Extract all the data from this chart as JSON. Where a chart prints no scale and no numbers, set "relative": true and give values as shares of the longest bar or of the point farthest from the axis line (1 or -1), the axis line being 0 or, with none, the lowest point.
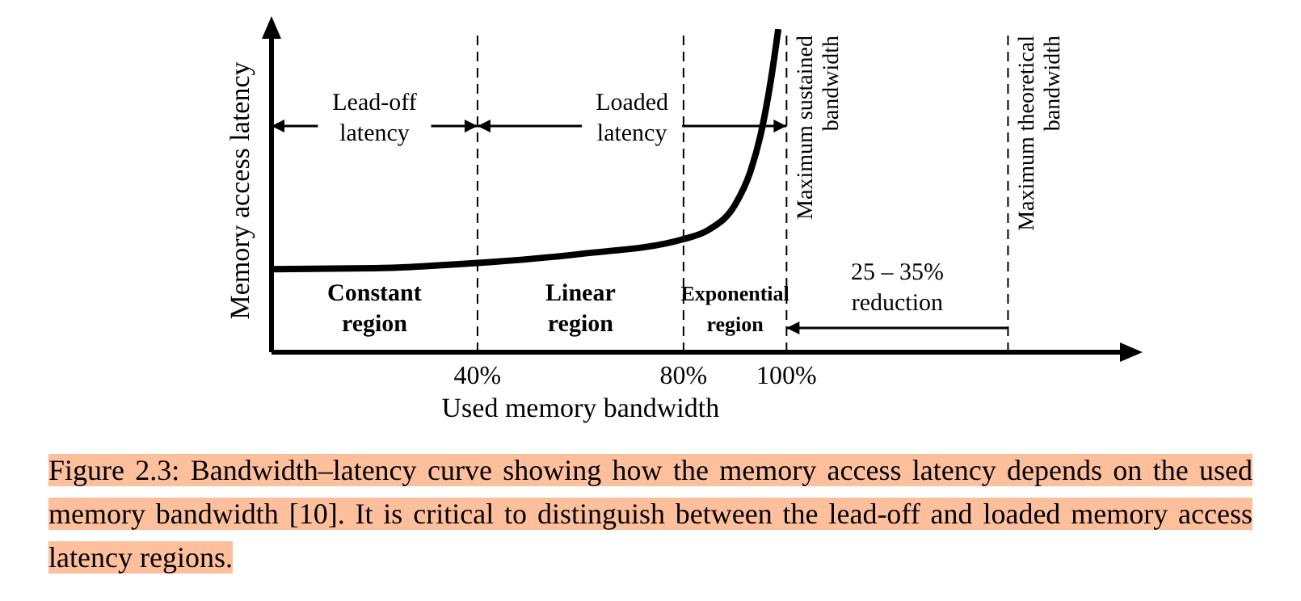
{
  "chart_data": {
    "type": "line",
    "relative": true,
    "xlabel": "Used memory bandwidth",
    "ylabel": "Memory access latency",
    "xlim": [
      0,
      166
    ],
    "xticks": [
      {
        "value": 40,
        "label": "40%"
      },
      {
        "value": 80,
        "label": "80%"
      },
      {
        "value": 100,
        "label": "100%"
      }
    ],
    "series": [
      {
        "color": "#000000",
        "x": [
          0,
          20,
          40,
          60,
          80,
          85,
          90,
          93,
          95,
          97,
          98.4
        ],
        "values": [
          0.257,
          0.26,
          0.276,
          0.304,
          0.35,
          0.38,
          0.456,
          0.56,
          0.675,
          0.846,
          1
        ]
      }
    ],
    "ref_lines": [
      {
        "axis": "x",
        "value": 40,
        "label": null,
        "color": "#000000",
        "line_style": "dashed"
      },
      {
        "axis": "x",
        "value": 80,
        "label": null,
        "color": "#000000",
        "line_style": "dashed"
      },
      {
        "axis": "x",
        "value": 100,
        "label": "Maximum sustained bandwidth",
        "color": "#000000",
        "line_style": "dashed"
      },
      {
        "axis": "x",
        "value": 143,
        "label": "Maximum theoretical bandwidth",
        "color": "#000000",
        "line_style": "dashed"
      }
    ],
    "annotations": [
      "Lead-off latency",
      "Loaded latency",
      "Constant region",
      "Linear region",
      "Exponential region",
      "25 – 35% reduction",
      "Figure 2.3: Bandwidth–latency curve showing how the memory access latency depends on the used memory bandwidth [10]. It is critical to distinguish between the lead-off and loaded memory access latency regions."
    ],
    "legend": false
  }
}
